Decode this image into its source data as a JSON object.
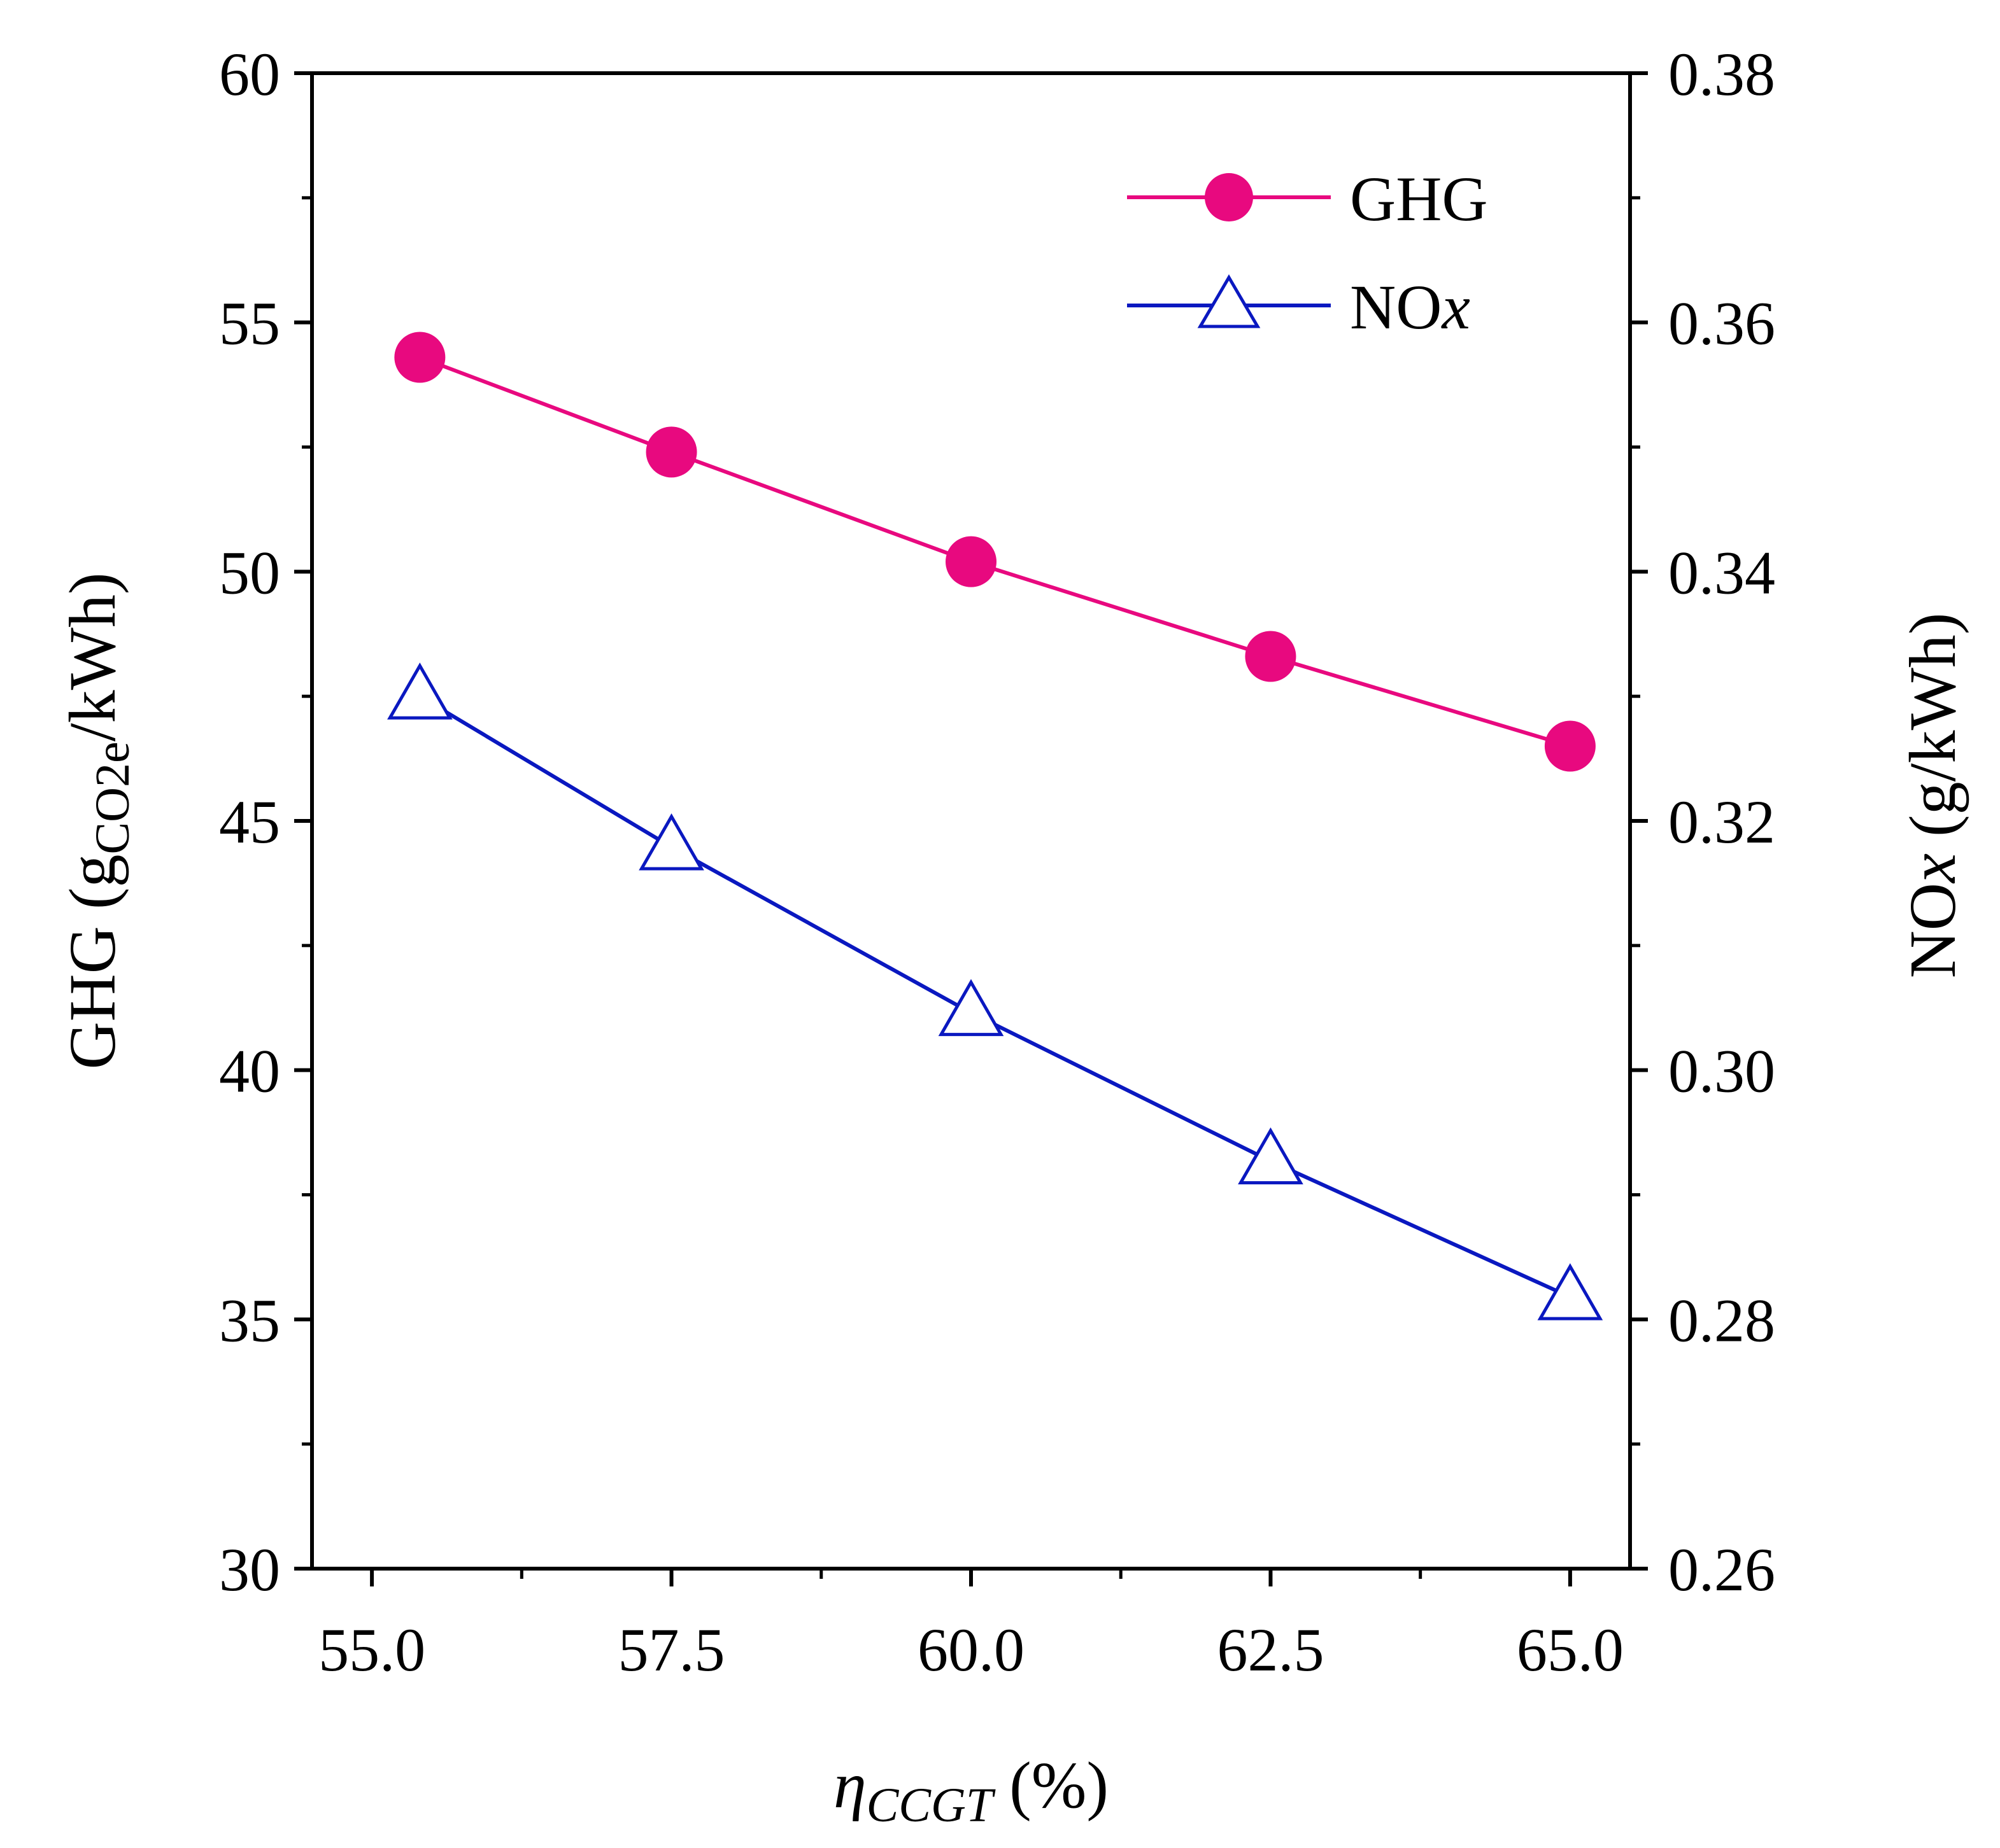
{
  "chart_data": {
    "type": "line",
    "x": [
      55.4,
      57.5,
      60.0,
      62.5,
      65.0
    ],
    "xlim": [
      54.5,
      65.5
    ],
    "xticks": [
      55.0,
      57.5,
      60.0,
      62.5,
      65.0
    ],
    "xtick_labels": [
      "55.0",
      "57.5",
      "60.0",
      "62.5",
      "65.0"
    ],
    "xlabel": {
      "main": "η",
      "sub": "CCGT",
      "suffix": " (%)"
    },
    "ylim_left": [
      30,
      60
    ],
    "yticks_left": [
      30,
      35,
      40,
      45,
      50,
      55,
      60
    ],
    "ytick_labels_left": [
      "30",
      "35",
      "40",
      "45",
      "50",
      "55",
      "60"
    ],
    "ylabel_left": {
      "pre": "GHG (g",
      "sub": "CO2e",
      "post": "/kWh)"
    },
    "ylim_right": [
      0.26,
      0.38
    ],
    "yticks_right": [
      0.26,
      0.28,
      0.3,
      0.32,
      0.34,
      0.36,
      0.38
    ],
    "ytick_labels_right": [
      "0.26",
      "0.28",
      "0.30",
      "0.32",
      "0.34",
      "0.36",
      "0.38"
    ],
    "ylabel_right": {
      "pre": "NO",
      "italic": "x",
      "post": " (g/kWh)"
    },
    "legend_position": "top-right",
    "series": [
      {
        "name": "GHG",
        "legend": {
          "pre": "GHG",
          "italic": ""
        },
        "axis": "left",
        "marker": "filled-circle",
        "color": "#E8097F",
        "values": [
          54.3,
          52.4,
          50.2,
          48.3,
          46.5
        ]
      },
      {
        "name": "NOx",
        "legend": {
          "pre": "NO",
          "italic": "x"
        },
        "axis": "right",
        "marker": "open-triangle",
        "color": "#0A18C0",
        "values": [
          0.33,
          0.3179,
          0.3046,
          0.2927,
          0.2818
        ]
      }
    ]
  }
}
